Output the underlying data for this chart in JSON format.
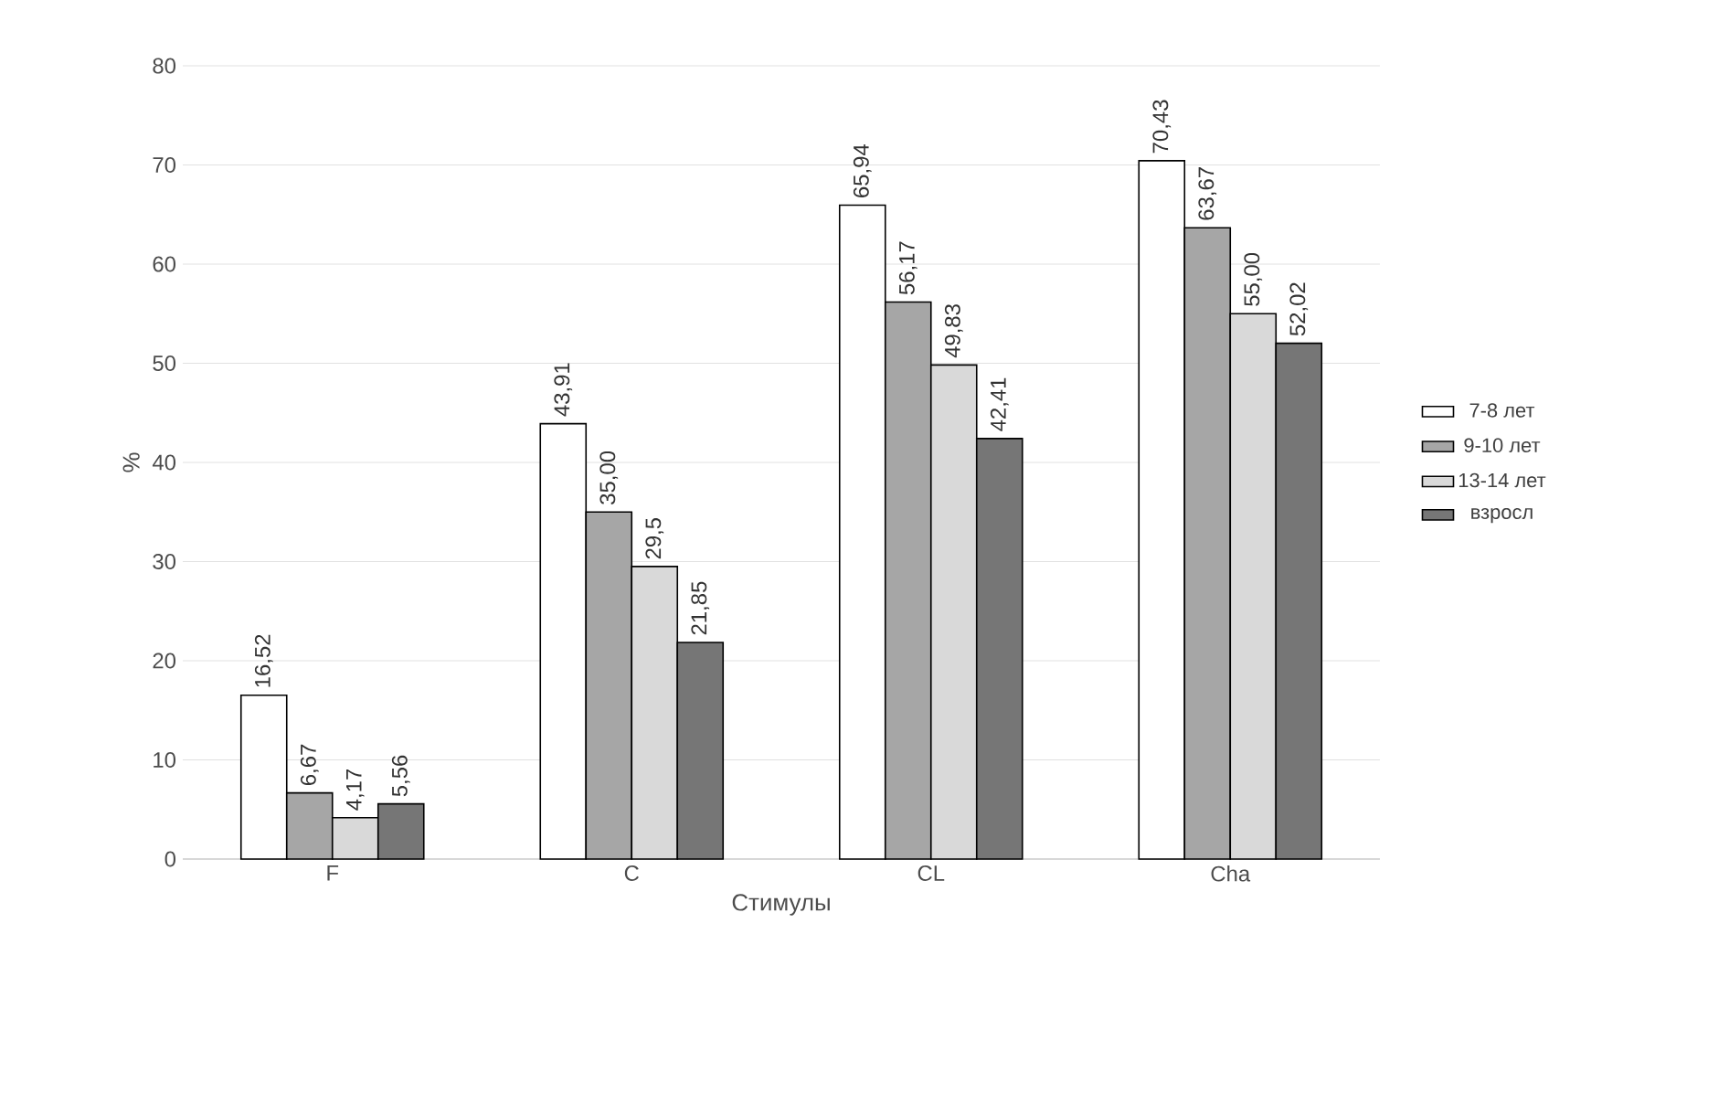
{
  "chart_data": {
    "type": "bar",
    "xlabel": "Стимулы",
    "ylabel": "%",
    "categories": [
      "F",
      "C",
      "CL",
      "Cha"
    ],
    "series": [
      {
        "name": "7-8 лет",
        "color": "#ffffff",
        "values": [
          16.52,
          43.91,
          65.94,
          70.43
        ],
        "value_labels": [
          "16,52",
          "43,91",
          "65,94",
          "70,43"
        ]
      },
      {
        "name": "9-10 лет",
        "color": "#a6a6a6",
        "values": [
          6.67,
          35.0,
          56.17,
          63.67
        ],
        "value_labels": [
          "6,67",
          "35,00",
          "56,17",
          "63,67"
        ]
      },
      {
        "name": "13-14 лет",
        "color": "#d9d9d9",
        "values": [
          4.17,
          29.5,
          49.83,
          55.0
        ],
        "value_labels": [
          "4,17",
          "29,5",
          "49,83",
          "55,00"
        ]
      },
      {
        "name": "взросл",
        "color": "#767676",
        "values": [
          5.56,
          21.85,
          42.41,
          52.02
        ],
        "value_labels": [
          "5,56",
          "21,85",
          "42,41",
          "52,02"
        ]
      }
    ],
    "ylim": [
      0,
      80
    ],
    "yticks": [
      0,
      10,
      20,
      30,
      40,
      50,
      60,
      70,
      80
    ],
    "grid": "y",
    "legend": "right"
  }
}
